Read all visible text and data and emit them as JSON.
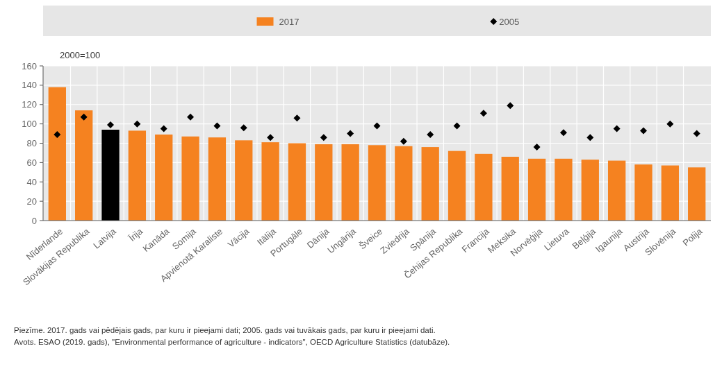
{
  "chart_data": {
    "type": "bar",
    "ylabel": "2000=100",
    "categories": [
      "Nīderlande",
      "Slovākijas Republika",
      "Latvija",
      "Īrija",
      "Kanāda",
      "Somija",
      "Apvienotā Karaliste",
      "Vācija",
      "Itālija",
      "Portugāle",
      "Dānija",
      "Ungārija",
      "Šveice",
      "Zviedrija",
      "Spānija",
      "Čehijas Republika",
      "Francija",
      "Meksika",
      "Norvēģija",
      "Lietuva",
      "Beļģija",
      "Igaunija",
      "Austrija",
      "Slovēnija",
      "Polija"
    ],
    "series": [
      {
        "name": "2017",
        "type": "bar",
        "color": "#f58220",
        "colors": [
          "#f58220",
          "#f58220",
          "#000000",
          "#f58220",
          "#f58220",
          "#f58220",
          "#f58220",
          "#f58220",
          "#f58220",
          "#f58220",
          "#f58220",
          "#f58220",
          "#f58220",
          "#f58220",
          "#f58220",
          "#f58220",
          "#f58220",
          "#f58220",
          "#f58220",
          "#f58220",
          "#f58220",
          "#f58220",
          "#f58220",
          "#f58220",
          "#f58220"
        ],
        "values": [
          138,
          114,
          94,
          93,
          89,
          87,
          86,
          83,
          81,
          80,
          79,
          79,
          78,
          77,
          76,
          72,
          69,
          66,
          64,
          64,
          63,
          62,
          58,
          57,
          55
        ]
      },
      {
        "name": "2005",
        "type": "scatter",
        "marker": "diamond",
        "color": "#000000",
        "values": [
          89,
          107,
          99,
          100,
          95,
          107,
          98,
          96,
          86,
          106,
          86,
          90,
          98,
          82,
          89,
          98,
          111,
          119,
          76,
          91,
          86,
          95,
          93,
          100,
          90
        ]
      }
    ],
    "ylim": [
      0,
      160
    ],
    "yticks": [
      0,
      20,
      40,
      60,
      80,
      100,
      120,
      140,
      160
    ],
    "grid": true,
    "legend": "top",
    "annotations": [
      "Piezīme. 2017. gads vai pēdējais gads, par kuru ir pieejami dati; 2005. gads vai tuvākais gads, par kuru ir pieejami dati.",
      "Avots. ESAO (2019. gads), \"Environmental performance of agriculture - indicators\", OECD Agriculture Statistics (datubāze)."
    ]
  }
}
